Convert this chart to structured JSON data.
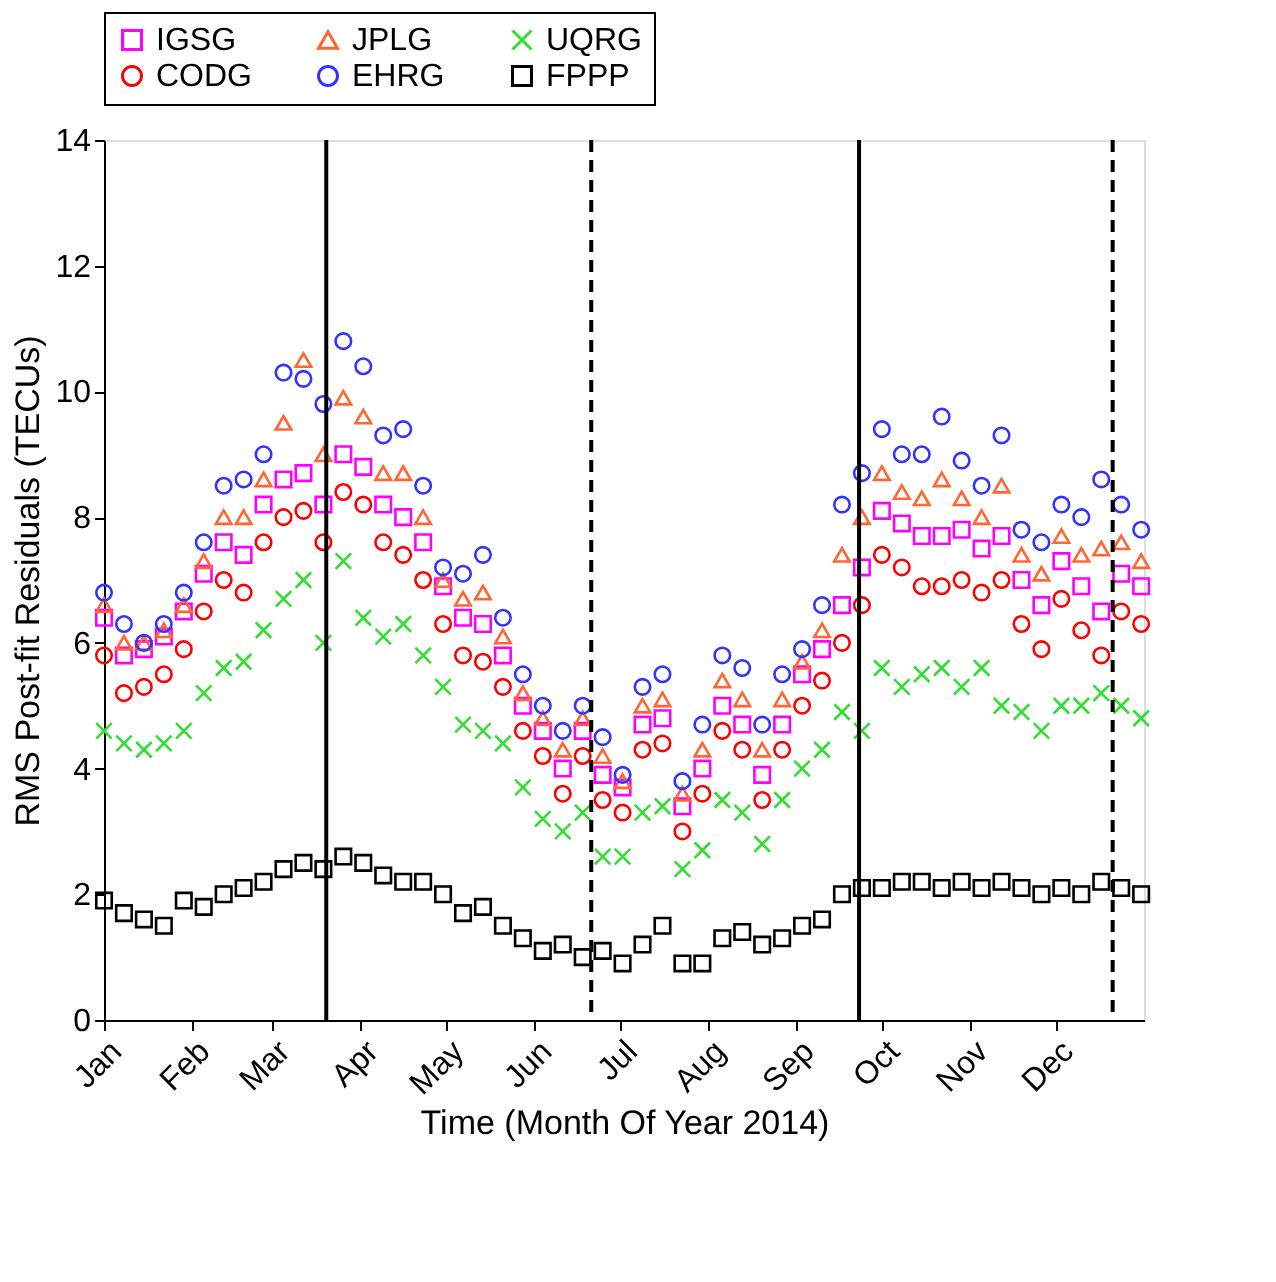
{
  "chart_data": {
    "type": "scatter",
    "xlabel": "Time (Month Of Year 2014)",
    "ylabel": "RMS Post-fit Residuals (TECUs)",
    "x": [
      "2014-01-01",
      "2014-01-08",
      "2014-01-15",
      "2014-01-22",
      "2014-01-29",
      "2014-02-05",
      "2014-02-12",
      "2014-02-19",
      "2014-02-26",
      "2014-03-05",
      "2014-03-12",
      "2014-03-19",
      "2014-03-26",
      "2014-04-02",
      "2014-04-09",
      "2014-04-16",
      "2014-04-23",
      "2014-04-30",
      "2014-05-07",
      "2014-05-14",
      "2014-05-21",
      "2014-05-28",
      "2014-06-04",
      "2014-06-11",
      "2014-06-18",
      "2014-06-25",
      "2014-07-02",
      "2014-07-09",
      "2014-07-16",
      "2014-07-23",
      "2014-07-30",
      "2014-08-06",
      "2014-08-13",
      "2014-08-20",
      "2014-08-27",
      "2014-09-03",
      "2014-09-10",
      "2014-09-17",
      "2014-09-24",
      "2014-10-01",
      "2014-10-08",
      "2014-10-15",
      "2014-10-22",
      "2014-10-29",
      "2014-11-05",
      "2014-11-12",
      "2014-11-19",
      "2014-11-26",
      "2014-12-03",
      "2014-12-10",
      "2014-12-17",
      "2014-12-24",
      "2014-12-31"
    ],
    "xlim": [
      "2014-01-01",
      "2015-01-01"
    ],
    "xticks": [
      {
        "value": "2014-01-01",
        "label": "Jan"
      },
      {
        "value": "2014-02-01",
        "label": "Feb"
      },
      {
        "value": "2014-03-01",
        "label": "Mar"
      },
      {
        "value": "2014-04-01",
        "label": "Apr"
      },
      {
        "value": "2014-05-01",
        "label": "May"
      },
      {
        "value": "2014-06-01",
        "label": "Jun"
      },
      {
        "value": "2014-07-01",
        "label": "Jul"
      },
      {
        "value": "2014-08-01",
        "label": "Aug"
      },
      {
        "value": "2014-09-01",
        "label": "Sep"
      },
      {
        "value": "2014-10-01",
        "label": "Oct"
      },
      {
        "value": "2014-11-01",
        "label": "Nov"
      },
      {
        "value": "2014-12-01",
        "label": "Dec"
      }
    ],
    "ylim": [
      0,
      14
    ],
    "yticks": [
      0,
      2,
      4,
      6,
      8,
      10,
      12,
      14
    ],
    "grid": false,
    "legend": "top",
    "series": [
      {
        "name": "IGSG",
        "color": "#ff00ff",
        "marker": "square",
        "values": [
          6.4,
          5.8,
          5.9,
          6.1,
          6.5,
          7.1,
          7.6,
          7.4,
          8.2,
          8.6,
          8.7,
          8.2,
          9.0,
          8.8,
          8.2,
          8.0,
          7.6,
          6.9,
          6.4,
          6.3,
          5.8,
          5.0,
          4.6,
          4.0,
          4.6,
          3.9,
          3.7,
          4.7,
          4.8,
          3.4,
          4.0,
          5.0,
          4.7,
          3.9,
          4.7,
          5.5,
          5.9,
          6.6,
          7.2,
          8.1,
          7.9,
          7.7,
          7.7,
          7.8,
          7.5,
          7.7,
          7.0,
          6.6,
          7.3,
          6.9,
          6.5,
          7.1,
          6.9
        ]
      },
      {
        "name": "JPLG",
        "color": "#ff6633",
        "marker": "triangle",
        "values": [
          6.6,
          6.0,
          6.0,
          6.2,
          6.6,
          7.3,
          8.0,
          8.0,
          8.6,
          9.5,
          10.5,
          9.0,
          9.9,
          9.6,
          8.7,
          8.7,
          8.0,
          7.0,
          6.7,
          6.8,
          6.1,
          5.2,
          4.8,
          4.3,
          4.8,
          4.2,
          3.8,
          5.0,
          5.1,
          3.6,
          4.3,
          5.4,
          5.1,
          4.3,
          5.1,
          5.7,
          6.2,
          7.4,
          8.0,
          8.7,
          8.4,
          8.3,
          8.6,
          8.3,
          8.0,
          8.5,
          7.4,
          7.1,
          7.7,
          7.4,
          7.5,
          7.6,
          7.3
        ]
      },
      {
        "name": "UQRG",
        "color": "#33dd33",
        "marker": "cross",
        "values": [
          4.6,
          4.4,
          4.3,
          4.4,
          4.6,
          5.2,
          5.6,
          5.7,
          6.2,
          6.7,
          7.0,
          6.0,
          7.3,
          6.4,
          6.1,
          6.3,
          5.8,
          5.3,
          4.7,
          4.6,
          4.4,
          3.7,
          3.2,
          3.0,
          3.3,
          2.6,
          2.6,
          3.3,
          3.4,
          2.4,
          2.7,
          3.5,
          3.3,
          2.8,
          3.5,
          4.0,
          4.3,
          4.9,
          4.6,
          5.6,
          5.3,
          5.5,
          5.6,
          5.3,
          5.6,
          5.0,
          4.9,
          4.6,
          5.0,
          5.0,
          5.2,
          5.0,
          4.8
        ]
      },
      {
        "name": "CODG",
        "color": "#ff0000",
        "marker": "circle",
        "values": [
          5.8,
          5.2,
          5.3,
          5.5,
          5.9,
          6.5,
          7.0,
          6.8,
          7.6,
          8.0,
          8.1,
          7.6,
          8.4,
          8.2,
          7.6,
          7.4,
          7.0,
          6.3,
          5.8,
          5.7,
          5.3,
          4.6,
          4.2,
          3.6,
          4.2,
          3.5,
          3.3,
          4.3,
          4.4,
          3.0,
          3.6,
          4.6,
          4.3,
          3.5,
          4.3,
          5.0,
          5.4,
          6.0,
          6.6,
          7.4,
          7.2,
          6.9,
          6.9,
          7.0,
          6.8,
          7.0,
          6.3,
          5.9,
          6.7,
          6.2,
          5.8,
          6.5,
          6.3
        ]
      },
      {
        "name": "EHRG",
        "color": "#3333ff",
        "marker": "circle",
        "values": [
          6.8,
          6.3,
          6.0,
          6.3,
          6.8,
          7.6,
          8.5,
          8.6,
          9.0,
          10.3,
          10.2,
          9.8,
          10.8,
          10.4,
          9.3,
          9.4,
          8.5,
          7.2,
          7.1,
          7.4,
          6.4,
          5.5,
          5.0,
          4.6,
          5.0,
          4.5,
          3.9,
          5.3,
          5.5,
          3.8,
          4.7,
          5.8,
          5.6,
          4.7,
          5.5,
          5.9,
          6.6,
          8.2,
          8.7,
          9.4,
          9.0,
          9.0,
          9.6,
          8.9,
          8.5,
          9.3,
          7.8,
          7.6,
          8.2,
          8.0,
          8.6,
          8.2,
          7.8
        ]
      },
      {
        "name": "FPPP",
        "color": "#000000",
        "marker": "square",
        "values": [
          1.9,
          1.7,
          1.6,
          1.5,
          1.9,
          1.8,
          2.0,
          2.1,
          2.2,
          2.4,
          2.5,
          2.4,
          2.6,
          2.5,
          2.3,
          2.2,
          2.2,
          2.0,
          1.7,
          1.8,
          1.5,
          1.3,
          1.1,
          1.2,
          1.0,
          1.1,
          0.9,
          1.2,
          1.5,
          0.9,
          0.9,
          1.3,
          1.4,
          1.2,
          1.3,
          1.5,
          1.6,
          2.0,
          2.1,
          2.1,
          2.2,
          2.2,
          2.1,
          2.2,
          2.1,
          2.2,
          2.1,
          2.0,
          2.1,
          2.0,
          2.2,
          2.1,
          2.0
        ]
      }
    ],
    "ref_lines": [
      {
        "axis": "x",
        "value": "2014-03-20",
        "line_style": "solid",
        "color": "#000000"
      },
      {
        "axis": "x",
        "value": "2014-06-21",
        "line_style": "dashed",
        "color": "#000000"
      },
      {
        "axis": "x",
        "value": "2014-09-23",
        "line_style": "solid",
        "color": "#000000"
      },
      {
        "axis": "x",
        "value": "2014-12-21",
        "line_style": "dashed",
        "color": "#000000"
      }
    ]
  }
}
